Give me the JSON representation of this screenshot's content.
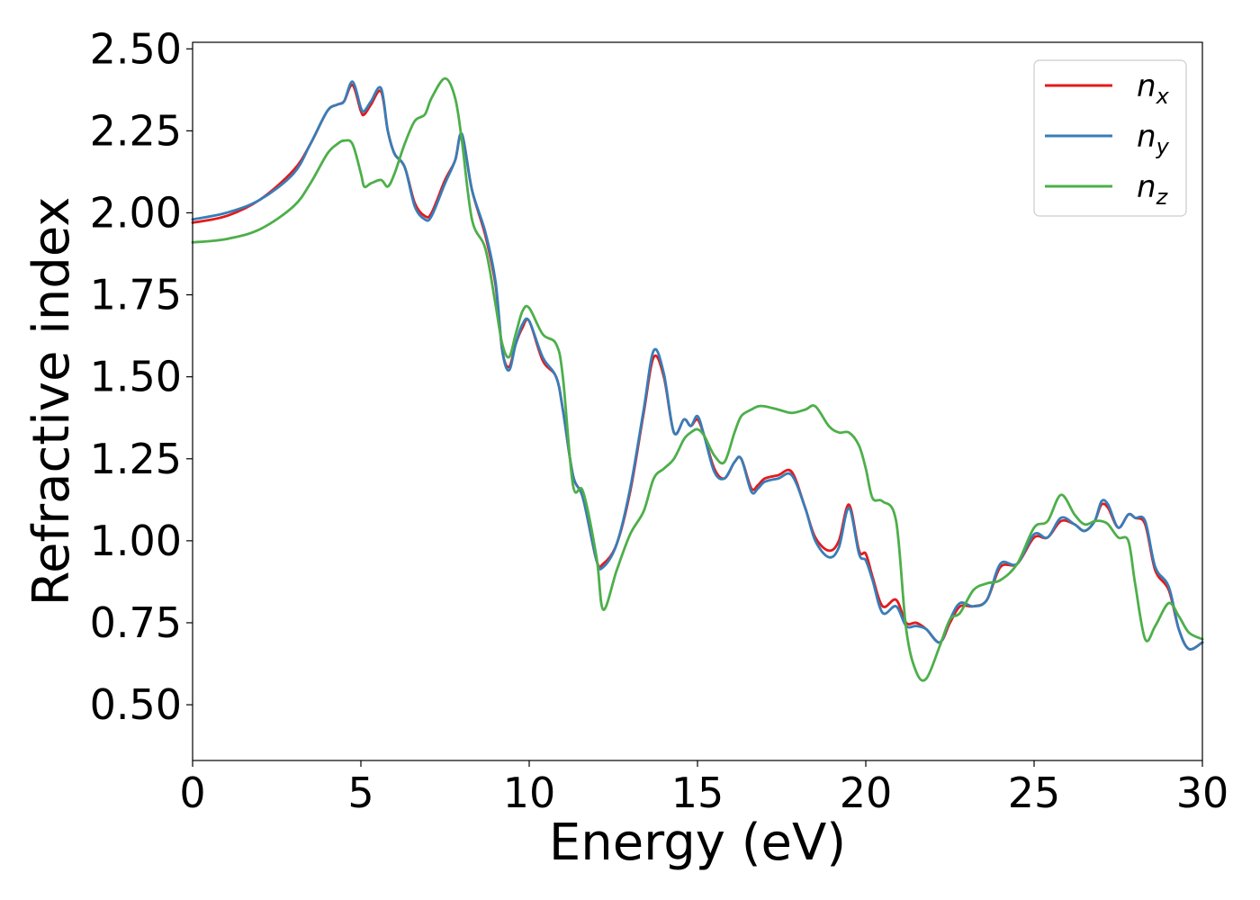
{
  "chart_data": {
    "type": "line",
    "xlabel": "Energy (eV)",
    "ylabel": "Refractive index",
    "xlim": [
      0,
      30
    ],
    "ylim": [
      0.33,
      2.52
    ],
    "x_ticks": [
      0,
      5,
      10,
      15,
      20,
      25,
      30
    ],
    "x_tick_labels": [
      "0",
      "5",
      "10",
      "15",
      "20",
      "25",
      "30"
    ],
    "y_ticks": [
      0.5,
      0.75,
      1.0,
      1.25,
      1.5,
      1.75,
      2.0,
      2.25,
      2.5
    ],
    "y_tick_labels": [
      "0.50",
      "0.75",
      "1.00",
      "1.25",
      "1.50",
      "1.75",
      "2.00",
      "2.25",
      "2.50"
    ],
    "grid": false,
    "legend_position": "top-right",
    "series": [
      {
        "name": "n",
        "subscript": "x",
        "color": "#e41a1c",
        "x": [
          0,
          1,
          2,
          3,
          3.5,
          4,
          4.3,
          4.5,
          4.75,
          5,
          5.1,
          5.3,
          5.6,
          5.8,
          6,
          6.3,
          6.6,
          6.9,
          7.1,
          7.5,
          7.8,
          8,
          8.3,
          8.7,
          9,
          9.2,
          9.4,
          9.6,
          9.8,
          10,
          10.4,
          10.8,
          11,
          11.3,
          11.6,
          12,
          12.2,
          12.6,
          13,
          13.4,
          13.7,
          14,
          14.3,
          14.6,
          14.8,
          15,
          15.2,
          15.5,
          15.8,
          16.1,
          16.3,
          16.6,
          16.8,
          17,
          17.4,
          17.8,
          18.2,
          18.5,
          18.9,
          19.2,
          19.5,
          19.8,
          20,
          20.2,
          20.5,
          20.9,
          21.2,
          21.5,
          21.8,
          22.2,
          22.5,
          22.8,
          23.2,
          23.6,
          24,
          24.5,
          25,
          25.4,
          25.8,
          26.2,
          26.5,
          26.8,
          27,
          27.2,
          27.5,
          27.8,
          28,
          28.3,
          28.6,
          29,
          29.3,
          29.6,
          30
        ],
        "y": [
          1.97,
          1.99,
          2.04,
          2.13,
          2.21,
          2.31,
          2.33,
          2.34,
          2.39,
          2.31,
          2.3,
          2.33,
          2.37,
          2.25,
          2.18,
          2.14,
          2.03,
          1.99,
          2.0,
          2.1,
          2.16,
          2.24,
          2.07,
          1.93,
          1.78,
          1.58,
          1.53,
          1.6,
          1.65,
          1.67,
          1.55,
          1.5,
          1.4,
          1.2,
          1.13,
          0.94,
          0.93,
          0.99,
          1.15,
          1.39,
          1.56,
          1.5,
          1.33,
          1.37,
          1.35,
          1.37,
          1.32,
          1.22,
          1.19,
          1.24,
          1.25,
          1.16,
          1.17,
          1.19,
          1.2,
          1.21,
          1.1,
          1.01,
          0.97,
          1.0,
          1.11,
          0.97,
          0.96,
          0.89,
          0.8,
          0.82,
          0.75,
          0.75,
          0.73,
          0.69,
          0.75,
          0.8,
          0.8,
          0.82,
          0.92,
          0.93,
          1.01,
          1.01,
          1.06,
          1.05,
          1.03,
          1.06,
          1.11,
          1.1,
          1.04,
          1.08,
          1.07,
          1.05,
          0.91,
          0.85,
          0.73,
          0.67,
          0.69
        ]
      },
      {
        "name": "n",
        "subscript": "y",
        "color": "#377eb8",
        "x": [
          0,
          1,
          2,
          3,
          3.5,
          4,
          4.3,
          4.5,
          4.75,
          5,
          5.1,
          5.3,
          5.6,
          5.8,
          6,
          6.3,
          6.6,
          6.9,
          7.1,
          7.5,
          7.8,
          8,
          8.3,
          8.7,
          9,
          9.2,
          9.4,
          9.6,
          9.8,
          10,
          10.4,
          10.8,
          11,
          11.3,
          11.6,
          12,
          12.2,
          12.6,
          13,
          13.4,
          13.7,
          14,
          14.3,
          14.6,
          14.8,
          15,
          15.2,
          15.5,
          15.8,
          16.1,
          16.3,
          16.6,
          16.8,
          17,
          17.4,
          17.8,
          18.2,
          18.5,
          18.9,
          19.2,
          19.5,
          19.8,
          20,
          20.2,
          20.5,
          20.9,
          21.2,
          21.5,
          21.8,
          22.2,
          22.5,
          22.8,
          23.2,
          23.6,
          24,
          24.5,
          25,
          25.4,
          25.8,
          26.2,
          26.5,
          26.8,
          27,
          27.2,
          27.5,
          27.8,
          28,
          28.3,
          28.6,
          29,
          29.3,
          29.6,
          30
        ],
        "y": [
          1.98,
          2.0,
          2.04,
          2.12,
          2.21,
          2.31,
          2.33,
          2.34,
          2.4,
          2.32,
          2.31,
          2.34,
          2.38,
          2.25,
          2.18,
          2.14,
          2.02,
          1.98,
          1.99,
          2.09,
          2.16,
          2.24,
          2.07,
          1.94,
          1.79,
          1.58,
          1.52,
          1.6,
          1.66,
          1.67,
          1.56,
          1.5,
          1.4,
          1.2,
          1.13,
          0.94,
          0.92,
          0.99,
          1.16,
          1.4,
          1.58,
          1.51,
          1.33,
          1.37,
          1.35,
          1.38,
          1.32,
          1.21,
          1.19,
          1.24,
          1.25,
          1.15,
          1.16,
          1.18,
          1.19,
          1.2,
          1.1,
          1.0,
          0.95,
          0.98,
          1.1,
          0.96,
          0.94,
          0.88,
          0.78,
          0.8,
          0.74,
          0.74,
          0.73,
          0.69,
          0.76,
          0.81,
          0.8,
          0.82,
          0.93,
          0.93,
          1.02,
          1.01,
          1.07,
          1.05,
          1.03,
          1.06,
          1.12,
          1.11,
          1.04,
          1.08,
          1.07,
          1.06,
          0.92,
          0.86,
          0.73,
          0.67,
          0.69
        ]
      },
      {
        "name": "n",
        "subscript": "z",
        "color": "#4daf4a",
        "x": [
          0,
          1,
          2,
          3,
          3.5,
          4,
          4.3,
          4.5,
          4.75,
          5,
          5.1,
          5.3,
          5.6,
          5.8,
          6,
          6.3,
          6.6,
          6.9,
          7.1,
          7.5,
          7.8,
          8,
          8.3,
          8.7,
          9,
          9.2,
          9.4,
          9.6,
          9.8,
          10,
          10.4,
          10.8,
          11,
          11.3,
          11.6,
          12,
          12.2,
          12.6,
          13,
          13.4,
          13.7,
          14,
          14.3,
          14.6,
          14.8,
          15,
          15.2,
          15.5,
          15.8,
          16.1,
          16.3,
          16.6,
          16.8,
          17,
          17.4,
          17.8,
          18.2,
          18.5,
          18.9,
          19.2,
          19.5,
          19.8,
          20,
          20.2,
          20.5,
          20.9,
          21.2,
          21.5,
          21.8,
          22.2,
          22.5,
          22.8,
          23.2,
          23.6,
          24,
          24.5,
          25,
          25.4,
          25.8,
          26.2,
          26.5,
          26.8,
          27,
          27.2,
          27.5,
          27.8,
          28,
          28.3,
          28.6,
          29,
          29.3,
          29.6,
          30
        ],
        "y": [
          1.91,
          1.92,
          1.95,
          2.02,
          2.09,
          2.18,
          2.21,
          2.22,
          2.21,
          2.12,
          2.08,
          2.09,
          2.1,
          2.08,
          2.12,
          2.21,
          2.28,
          2.3,
          2.35,
          2.41,
          2.35,
          2.22,
          1.98,
          1.89,
          1.72,
          1.6,
          1.56,
          1.63,
          1.7,
          1.71,
          1.63,
          1.6,
          1.5,
          1.17,
          1.15,
          0.95,
          0.79,
          0.91,
          1.02,
          1.09,
          1.19,
          1.22,
          1.25,
          1.31,
          1.33,
          1.34,
          1.32,
          1.26,
          1.24,
          1.33,
          1.38,
          1.4,
          1.41,
          1.41,
          1.4,
          1.39,
          1.4,
          1.41,
          1.35,
          1.33,
          1.33,
          1.29,
          1.22,
          1.13,
          1.12,
          1.06,
          0.73,
          0.6,
          0.58,
          0.68,
          0.76,
          0.78,
          0.85,
          0.87,
          0.88,
          0.93,
          1.04,
          1.06,
          1.14,
          1.08,
          1.05,
          1.06,
          1.06,
          1.05,
          1.01,
          1.0,
          0.87,
          0.7,
          0.74,
          0.81,
          0.77,
          0.72,
          0.7
        ]
      }
    ]
  }
}
